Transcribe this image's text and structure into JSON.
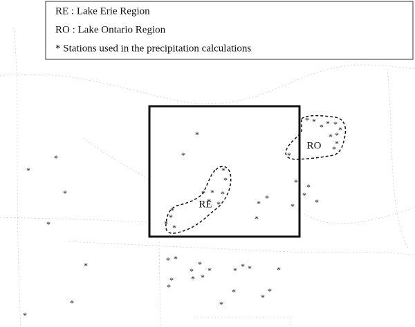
{
  "legend": {
    "items": [
      "RE : Lake Erie Region",
      "RO : Lake Ontario Region",
      "* Stations used in the precipitation calculations"
    ]
  },
  "regions": {
    "erie": "RE",
    "ontario": "RO"
  },
  "station_symbol": "*"
}
